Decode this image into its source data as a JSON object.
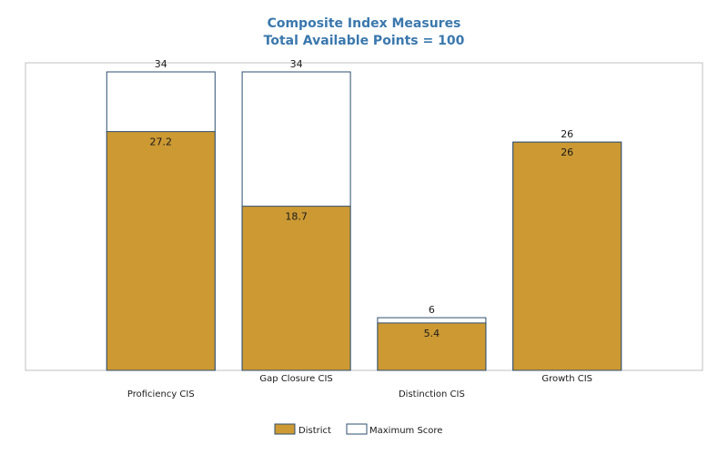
{
  "chart_data": {
    "type": "bar",
    "title": "Composite Index Measures",
    "subtitle": "Total Available Points = 100",
    "categories": [
      "Proficiency CIS",
      "Gap Closure CIS",
      "Distinction CIS",
      "Growth CIS"
    ],
    "series": [
      {
        "name": "District",
        "values": [
          27.2,
          18.7,
          5.4,
          26
        ],
        "color": "#cc9933"
      },
      {
        "name": "Maximum Score",
        "values": [
          34,
          34,
          6,
          26
        ],
        "color": "#ffffff"
      }
    ],
    "ylim": [
      0,
      34
    ],
    "grid": false,
    "legend_position": "bottom-center",
    "title_color": "#3a78ad",
    "bar_border_color": "#2f4f6f",
    "frame_color": "#c0c0c0"
  }
}
